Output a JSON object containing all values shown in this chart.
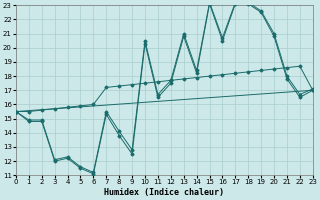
{
  "xlabel": "Humidex (Indice chaleur)",
  "bg_color": "#cde8e8",
  "grid_color": "#aacece",
  "line_color": "#1a6b6b",
  "xlim": [
    0,
    23
  ],
  "ylim": [
    11,
    23
  ],
  "xticks": [
    0,
    1,
    2,
    3,
    4,
    5,
    6,
    7,
    8,
    9,
    10,
    11,
    12,
    13,
    14,
    15,
    16,
    17,
    18,
    19,
    20,
    21,
    22,
    23
  ],
  "yticks": [
    11,
    12,
    13,
    14,
    15,
    16,
    17,
    18,
    19,
    20,
    21,
    22,
    23
  ],
  "curve1_x": [
    0,
    1,
    2,
    3,
    4,
    5,
    6,
    7,
    8,
    9,
    10,
    11,
    12,
    13,
    14,
    15,
    16,
    17,
    18,
    19,
    20,
    21,
    22,
    23
  ],
  "curve1_y": [
    15.5,
    14.8,
    14.8,
    12.0,
    12.2,
    11.5,
    11.1,
    15.3,
    13.8,
    12.5,
    20.3,
    16.5,
    17.5,
    20.8,
    18.2,
    23.1,
    20.5,
    23.1,
    23.1,
    22.5,
    20.8,
    17.8,
    16.5,
    17.0
  ],
  "curve2_x": [
    0,
    1,
    2,
    3,
    4,
    5,
    6,
    7,
    8,
    9,
    10,
    11,
    12,
    13,
    14,
    15,
    16,
    17,
    18,
    19,
    20,
    21,
    22,
    23
  ],
  "curve2_y": [
    15.5,
    14.9,
    14.9,
    12.1,
    12.3,
    11.6,
    11.2,
    15.5,
    14.1,
    12.8,
    20.5,
    16.7,
    17.7,
    21.0,
    18.4,
    23.2,
    20.7,
    23.2,
    23.2,
    22.6,
    21.0,
    18.0,
    16.7,
    17.1
  ],
  "curve3_x": [
    0,
    1,
    2,
    3,
    4,
    5,
    6,
    7,
    8,
    9,
    10,
    11,
    12,
    13,
    14,
    15,
    16,
    17,
    18,
    19,
    20,
    21,
    22,
    23
  ],
  "curve3_y": [
    15.5,
    15.5,
    15.6,
    15.7,
    15.8,
    15.9,
    16.0,
    17.2,
    17.3,
    17.4,
    17.5,
    17.6,
    17.7,
    17.8,
    17.9,
    18.0,
    18.1,
    18.2,
    18.3,
    18.4,
    18.5,
    18.6,
    18.7,
    17.0
  ],
  "curve4_x": [
    0,
    23
  ],
  "curve4_y": [
    15.5,
    17.0
  ]
}
